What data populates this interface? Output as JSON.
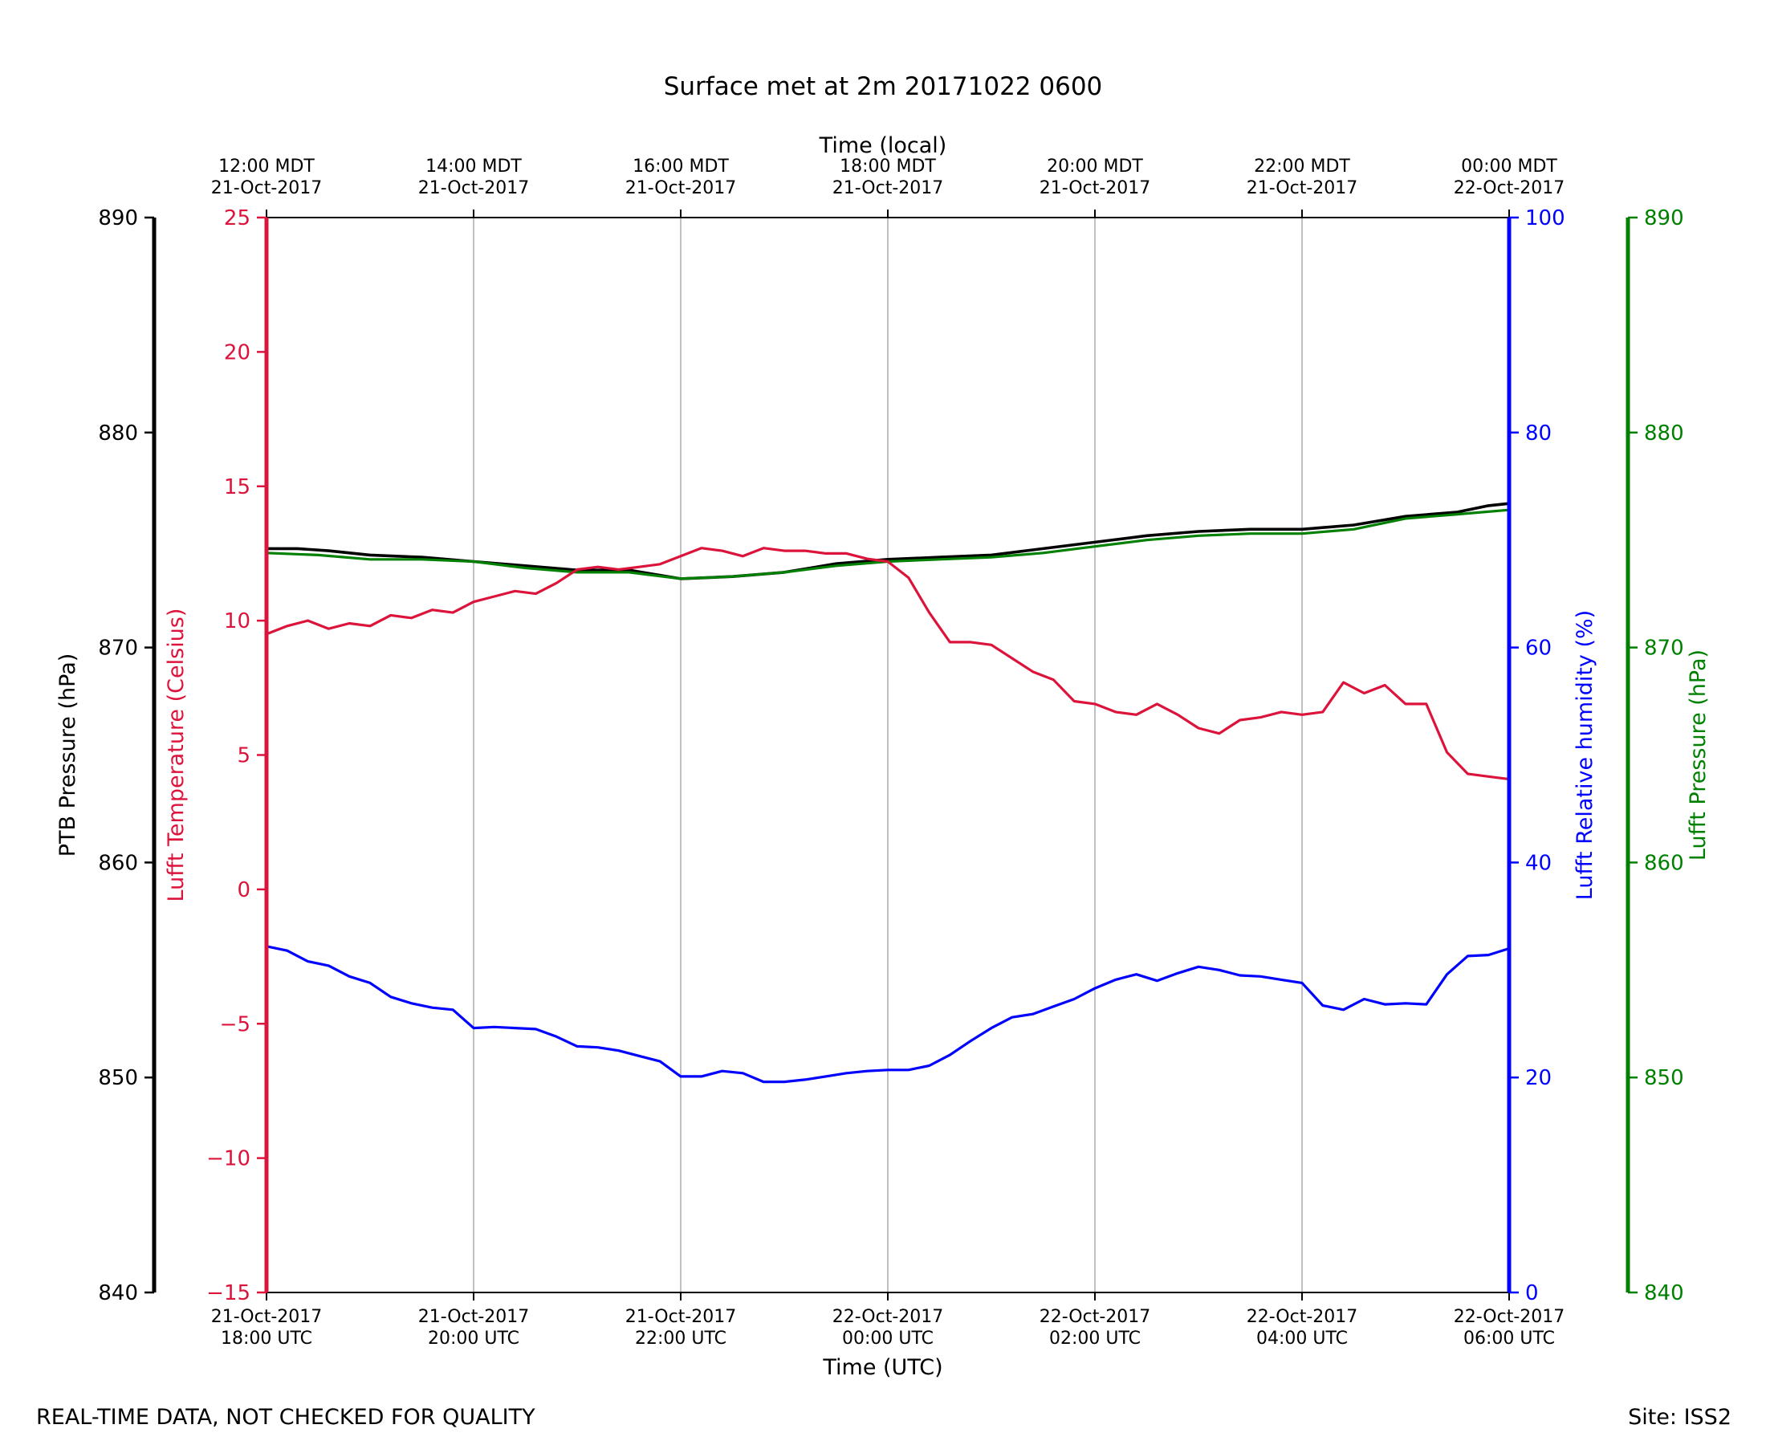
{
  "chart_data": {
    "type": "line",
    "title": "Surface met at 2m 20171022 0600",
    "xlabel": "Time (UTC)",
    "top_xlabel": "Time (local)",
    "x_range_hours": [
      0,
      12
    ],
    "x_ticks_utc": [
      {
        "h": 0,
        "line1": "21-Oct-2017",
        "line2": "18:00 UTC"
      },
      {
        "h": 2,
        "line1": "21-Oct-2017",
        "line2": "20:00 UTC"
      },
      {
        "h": 4,
        "line1": "21-Oct-2017",
        "line2": "22:00 UTC"
      },
      {
        "h": 6,
        "line1": "22-Oct-2017",
        "line2": "00:00 UTC"
      },
      {
        "h": 8,
        "line1": "22-Oct-2017",
        "line2": "02:00 UTC"
      },
      {
        "h": 10,
        "line1": "22-Oct-2017",
        "line2": "04:00 UTC"
      },
      {
        "h": 12,
        "line1": "22-Oct-2017",
        "line2": "06:00 UTC"
      }
    ],
    "x_ticks_local": [
      {
        "h": 0,
        "line1": "12:00 MDT",
        "line2": "21-Oct-2017"
      },
      {
        "h": 2,
        "line1": "14:00 MDT",
        "line2": "21-Oct-2017"
      },
      {
        "h": 4,
        "line1": "16:00 MDT",
        "line2": "21-Oct-2017"
      },
      {
        "h": 6,
        "line1": "18:00 MDT",
        "line2": "21-Oct-2017"
      },
      {
        "h": 8,
        "line1": "20:00 MDT",
        "line2": "21-Oct-2017"
      },
      {
        "h": 10,
        "line1": "22:00 MDT",
        "line2": "21-Oct-2017"
      },
      {
        "h": 12,
        "line1": "00:00 MDT",
        "line2": "22-Oct-2017"
      }
    ],
    "axes": {
      "ptb_pressure": {
        "label": "PTB Pressure (hPa)",
        "ylim": [
          840,
          890
        ],
        "ticks": [
          840,
          850,
          860,
          870,
          880,
          890
        ],
        "color": "#000000"
      },
      "temperature": {
        "label": "Lufft Temperature (Celsius)",
        "ylim": [
          -15,
          25
        ],
        "ticks": [
          -15,
          -10,
          -5,
          0,
          5,
          10,
          15,
          20,
          25
        ],
        "color": "#dc143c"
      },
      "humidity": {
        "label": "Lufft Relative humidity (%)",
        "ylim": [
          0,
          100
        ],
        "ticks": [
          0,
          20,
          40,
          60,
          80,
          100
        ],
        "color": "#0000ff"
      },
      "lufft_pressure": {
        "label": "Lufft Pressure (hPa)",
        "ylim": [
          840,
          890
        ],
        "ticks": [
          840,
          850,
          860,
          870,
          880,
          890
        ],
        "color": "#008000"
      }
    },
    "series": [
      {
        "name": "PTB Pressure",
        "axis": "ptb_pressure",
        "color": "#000000",
        "x": [
          0,
          0.3,
          0.6,
          1.0,
          1.5,
          2.0,
          2.5,
          3.0,
          3.5,
          4.0,
          4.5,
          5.0,
          5.5,
          6.0,
          6.5,
          7.0,
          7.5,
          8.0,
          8.5,
          9.0,
          9.5,
          10.0,
          10.5,
          11.0,
          11.5,
          11.8,
          12.0
        ],
        "values": [
          874.6,
          874.6,
          874.5,
          874.3,
          874.2,
          874.0,
          873.8,
          873.6,
          873.6,
          873.2,
          873.3,
          873.5,
          873.9,
          874.1,
          874.2,
          874.3,
          874.6,
          874.9,
          875.2,
          875.4,
          875.5,
          875.5,
          875.7,
          876.1,
          876.3,
          876.6,
          876.7
        ]
      },
      {
        "name": "Lufft Pressure",
        "axis": "lufft_pressure",
        "color": "#008000",
        "x": [
          0,
          0.5,
          1.0,
          1.5,
          2.0,
          2.5,
          3.0,
          3.5,
          4.0,
          4.5,
          5.0,
          5.5,
          6.0,
          6.5,
          7.0,
          7.5,
          8.0,
          8.5,
          9.0,
          9.5,
          10.0,
          10.5,
          11.0,
          11.5,
          12.0
        ],
        "values": [
          874.4,
          874.3,
          874.1,
          874.1,
          874.0,
          873.7,
          873.5,
          873.5,
          873.2,
          873.3,
          873.5,
          873.8,
          874.0,
          874.1,
          874.2,
          874.4,
          874.7,
          875.0,
          875.2,
          875.3,
          875.3,
          875.5,
          876.0,
          876.2,
          876.4
        ]
      },
      {
        "name": "Lufft Temperature",
        "axis": "temperature",
        "color": "#dc143c",
        "x": [
          0,
          0.2,
          0.4,
          0.6,
          0.8,
          1.0,
          1.2,
          1.4,
          1.6,
          1.8,
          2.0,
          2.2,
          2.4,
          2.6,
          2.8,
          3.0,
          3.2,
          3.4,
          3.6,
          3.8,
          4.0,
          4.2,
          4.4,
          4.6,
          4.8,
          5.0,
          5.2,
          5.4,
          5.6,
          5.8,
          6.0,
          6.2,
          6.4,
          6.6,
          6.8,
          7.0,
          7.2,
          7.4,
          7.6,
          7.8,
          8.0,
          8.2,
          8.4,
          8.6,
          8.8,
          9.0,
          9.2,
          9.4,
          9.6,
          9.8,
          10.0,
          10.2,
          10.4,
          10.6,
          10.8,
          11.0,
          11.2,
          11.4,
          11.6,
          11.8,
          12.0
        ],
        "values": [
          9.5,
          9.8,
          10.0,
          9.7,
          9.9,
          9.8,
          10.2,
          10.1,
          10.4,
          10.3,
          10.7,
          10.9,
          11.1,
          11.0,
          11.4,
          11.9,
          12.0,
          11.9,
          12.0,
          12.1,
          12.4,
          12.7,
          12.6,
          12.4,
          12.7,
          12.6,
          12.6,
          12.5,
          12.5,
          12.3,
          12.2,
          11.6,
          10.3,
          9.2,
          9.2,
          9.1,
          8.6,
          8.1,
          7.8,
          7.0,
          6.9,
          6.6,
          6.5,
          6.9,
          6.5,
          6.0,
          5.8,
          6.3,
          6.4,
          6.6,
          6.5,
          6.6,
          7.7,
          7.3,
          7.6,
          6.9,
          6.9,
          5.1,
          4.3,
          4.2,
          4.1
        ]
      },
      {
        "name": "Lufft Relative humidity",
        "axis": "humidity",
        "color": "#0000ff",
        "x": [
          0,
          0.2,
          0.4,
          0.6,
          0.8,
          1.0,
          1.2,
          1.4,
          1.6,
          1.8,
          2.0,
          2.2,
          2.4,
          2.6,
          2.8,
          3.0,
          3.2,
          3.4,
          3.6,
          3.8,
          4.0,
          4.2,
          4.4,
          4.6,
          4.8,
          5.0,
          5.2,
          5.4,
          5.6,
          5.8,
          6.0,
          6.2,
          6.4,
          6.6,
          6.8,
          7.0,
          7.2,
          7.4,
          7.6,
          7.8,
          8.0,
          8.2,
          8.4,
          8.6,
          8.8,
          9.0,
          9.2,
          9.4,
          9.6,
          9.8,
          10.0,
          10.2,
          10.4,
          10.6,
          10.8,
          11.0,
          11.2,
          11.4,
          11.6,
          11.8,
          12.0
        ],
        "values": [
          32.2,
          31.8,
          30.8,
          30.4,
          29.4,
          28.8,
          27.5,
          26.9,
          26.5,
          26.3,
          24.6,
          24.7,
          24.6,
          24.5,
          23.8,
          22.9,
          22.8,
          22.5,
          22.0,
          21.5,
          20.1,
          20.1,
          20.6,
          20.4,
          19.6,
          19.6,
          19.8,
          20.1,
          20.4,
          20.6,
          20.7,
          20.7,
          21.1,
          22.1,
          23.4,
          24.6,
          25.6,
          25.9,
          26.6,
          27.3,
          28.3,
          29.1,
          29.6,
          29.0,
          29.7,
          30.3,
          30.0,
          29.5,
          29.4,
          29.1,
          28.8,
          26.7,
          26.3,
          27.3,
          26.8,
          26.9,
          26.8,
          29.6,
          31.3,
          31.4,
          32.0
        ]
      }
    ]
  },
  "footer": {
    "left": "REAL-TIME DATA, NOT CHECKED FOR QUALITY",
    "right": "Site: ISS2"
  }
}
